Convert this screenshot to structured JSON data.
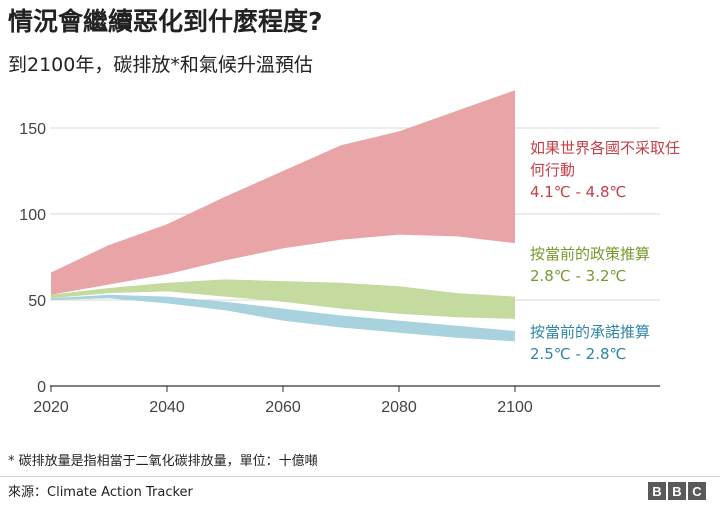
{
  "header": {
    "title": "情況會繼續惡化到什麼程度?",
    "subtitle": "到2100年，碳排放*和氣候升溫預估"
  },
  "footer": {
    "footnote": "* 碳排放量是指相當于二氧化碳排放量，單位：十億噸",
    "source": "來源：Climate Action Tracker",
    "logo_letters": [
      "B",
      "B",
      "C"
    ]
  },
  "chart_data": {
    "type": "area",
    "title": "情況會繼續惡化到什麼程度?",
    "subtitle": "到2100年，碳排放*和氣候升溫預估",
    "x_ticks": [
      2020,
      2040,
      2060,
      2080,
      2100
    ],
    "y_ticks": [
      0,
      50,
      100,
      150
    ],
    "xlim": [
      2020,
      2100
    ],
    "ylim": [
      0,
      175
    ],
    "grid": true,
    "series": [
      {
        "name": "如果世界各國不采取任何行動",
        "label_lines": [
          "如果世界各國不采取任",
          "何行動"
        ],
        "range_label": "4.1℃ - 4.8℃",
        "color": "#e8a4a6",
        "label_color": "#c4404a",
        "x": [
          2020,
          2030,
          2040,
          2050,
          2060,
          2070,
          2080,
          2090,
          2100
        ],
        "upper": [
          66,
          82,
          94,
          110,
          125,
          140,
          148,
          160,
          172
        ],
        "lower": [
          53,
          59,
          65,
          73,
          80,
          85,
          88,
          87,
          83
        ]
      },
      {
        "name": "按當前的政策推算",
        "label_lines": [
          "按當前的政策推算"
        ],
        "range_label": "2.8℃ - 3.2℃",
        "color": "#c5da9e",
        "label_color": "#7a9a2e",
        "x": [
          2020,
          2030,
          2040,
          2050,
          2060,
          2070,
          2080,
          2090,
          2100
        ],
        "upper": [
          53,
          57,
          60,
          62,
          61,
          60,
          58,
          54,
          52
        ],
        "lower": [
          51,
          54,
          55,
          52,
          49,
          45,
          42,
          40,
          39
        ]
      },
      {
        "name": "按當前的承諾推算",
        "label_lines": [
          "按當前的承諾推算"
        ],
        "range_label": "2.5℃ - 2.8℃",
        "color": "#a9d2df",
        "label_color": "#2e86a8",
        "x": [
          2020,
          2030,
          2040,
          2050,
          2060,
          2070,
          2080,
          2090,
          2100
        ],
        "upper": [
          51,
          53,
          52,
          49,
          45,
          41,
          38,
          35,
          32
        ],
        "lower": [
          50,
          51,
          48,
          44,
          38,
          34,
          31,
          28,
          26
        ]
      }
    ]
  }
}
